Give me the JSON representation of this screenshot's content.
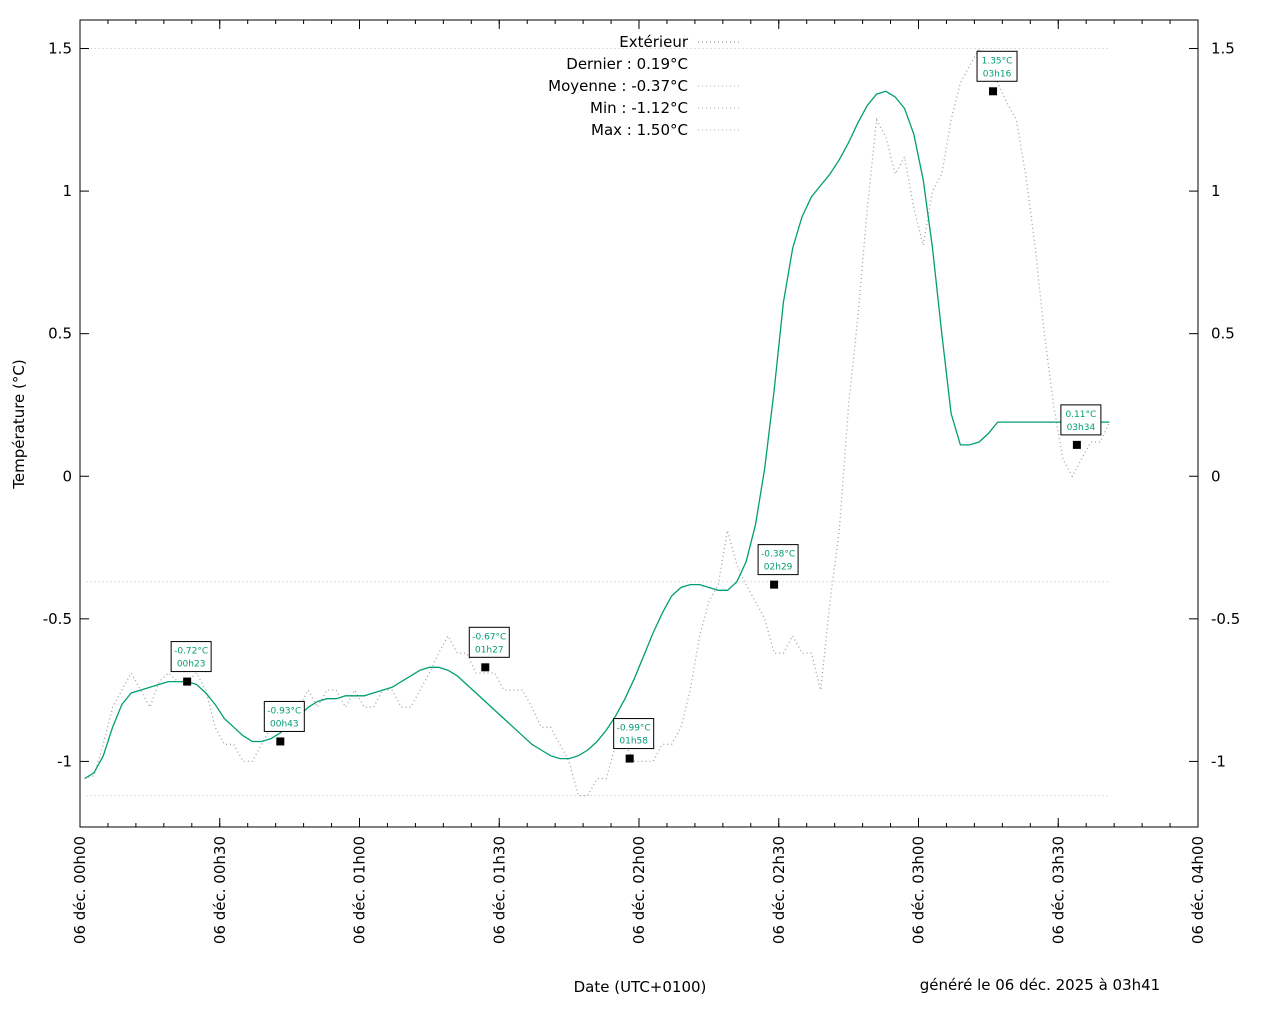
{
  "chart_data": {
    "type": "line",
    "title": "",
    "xlabel": "Date (UTC+0100)",
    "ylabel": "Température (°C)",
    "footer": "généré le 06 déc. 2025 à 03h41",
    "xlim": [
      "00:00",
      "04:00"
    ],
    "ylim": [
      -1.23,
      1.6
    ],
    "y_ticks": [
      {
        "value": 1.5,
        "label": "1.5"
      },
      {
        "value": 1.0,
        "label": "1"
      },
      {
        "value": 0.5,
        "label": "0.5"
      },
      {
        "value": 0.0,
        "label": "0"
      },
      {
        "value": -0.5,
        "label": "-0.5"
      },
      {
        "value": -1.0,
        "label": "-1"
      }
    ],
    "x_ticks": [
      {
        "value": "00:00",
        "label": "06 déc. 00h00"
      },
      {
        "value": "00:30",
        "label": "06 déc. 00h30"
      },
      {
        "value": "01:00",
        "label": "06 déc. 01h00"
      },
      {
        "value": "01:30",
        "label": "06 déc. 01h30"
      },
      {
        "value": "02:00",
        "label": "06 déc. 02h00"
      },
      {
        "value": "02:30",
        "label": "06 déc. 02h30"
      },
      {
        "value": "03:00",
        "label": "06 déc. 03h00"
      },
      {
        "value": "03:30",
        "label": "06 déc. 03h30"
      },
      {
        "value": "04:00",
        "label": "06 déc. 04h00"
      }
    ],
    "x_minor_tick_minutes": 6,
    "grid": false,
    "legend_position": "top-center",
    "legend": [
      {
        "label": "Extérieur",
        "key": "raw"
      },
      {
        "label": "Dernier : 0.19°C",
        "key": "none"
      },
      {
        "label": "Moyenne : -0.37°C",
        "key": "mean"
      },
      {
        "label": "Min : -1.12°C",
        "key": "min"
      },
      {
        "label": "Max : 1.50°C",
        "key": "max"
      }
    ],
    "reference_lines": {
      "mean": -0.37,
      "min": -1.12,
      "max": 1.5
    },
    "colors": {
      "smooth": "#009e73",
      "raw": "#a0a0a0",
      "reference": "#c0c0c0",
      "marker": "#000000"
    },
    "series": [
      {
        "key": "raw",
        "style": "dotted",
        "x": [
          "00:01",
          "00:03",
          "00:05",
          "00:07",
          "00:09",
          "00:11",
          "00:13",
          "00:15",
          "00:17",
          "00:19",
          "00:21",
          "00:23",
          "00:25",
          "00:27",
          "00:29",
          "00:31",
          "00:33",
          "00:35",
          "00:37",
          "00:39",
          "00:41",
          "00:43",
          "00:45",
          "00:47",
          "00:49",
          "00:51",
          "00:53",
          "00:55",
          "00:57",
          "00:59",
          "01:01",
          "01:03",
          "01:05",
          "01:07",
          "01:09",
          "01:11",
          "01:13",
          "01:15",
          "01:17",
          "01:19",
          "01:21",
          "01:23",
          "01:25",
          "01:27",
          "01:29",
          "01:31",
          "01:33",
          "01:35",
          "01:37",
          "01:39",
          "01:41",
          "01:43",
          "01:45",
          "01:47",
          "01:49",
          "01:51",
          "01:53",
          "01:55",
          "01:57",
          "01:59",
          "02:01",
          "02:03",
          "02:05",
          "02:07",
          "02:09",
          "02:11",
          "02:13",
          "02:15",
          "02:17",
          "02:19",
          "02:21",
          "02:23",
          "02:25",
          "02:27",
          "02:29",
          "02:31",
          "02:33",
          "02:35",
          "02:37",
          "02:39",
          "02:41",
          "02:43",
          "02:45",
          "02:47",
          "02:49",
          "02:51",
          "02:53",
          "02:55",
          "02:57",
          "02:59",
          "03:01",
          "03:03",
          "03:05",
          "03:07",
          "03:09",
          "03:11",
          "03:13",
          "03:15",
          "03:17",
          "03:19",
          "03:21",
          "03:23",
          "03:25",
          "03:27",
          "03:29",
          "03:31",
          "03:33",
          "03:35",
          "03:37",
          "03:39",
          "03:41"
        ],
        "y": [
          -1.06,
          -1.05,
          -0.94,
          -0.81,
          -0.75,
          -0.69,
          -0.75,
          -0.81,
          -0.72,
          -0.69,
          -0.72,
          -0.72,
          -0.69,
          -0.75,
          -0.88,
          -0.94,
          -0.94,
          -1.0,
          -1.0,
          -0.94,
          -0.88,
          -0.88,
          -0.88,
          -0.81,
          -0.75,
          -0.81,
          -0.75,
          -0.75,
          -0.81,
          -0.75,
          -0.81,
          -0.81,
          -0.75,
          -0.75,
          -0.81,
          -0.81,
          -0.75,
          -0.69,
          -0.62,
          -0.56,
          -0.62,
          -0.62,
          -0.69,
          -0.69,
          -0.69,
          -0.75,
          -0.75,
          -0.75,
          -0.81,
          -0.88,
          -0.88,
          -0.94,
          -1.0,
          -1.12,
          -1.12,
          -1.06,
          -1.06,
          -0.94,
          -0.94,
          -1.0,
          -1.0,
          -1.0,
          -0.94,
          -0.94,
          -0.88,
          -0.75,
          -0.56,
          -0.44,
          -0.38,
          -0.19,
          -0.31,
          -0.38,
          -0.44,
          -0.5,
          -0.62,
          -0.62,
          -0.56,
          -0.62,
          -0.62,
          -0.75,
          -0.44,
          -0.19,
          0.25,
          0.56,
          0.94,
          1.25,
          1.19,
          1.06,
          1.12,
          0.94,
          0.81,
          1.0,
          1.06,
          1.25,
          1.38,
          1.44,
          1.5,
          1.44,
          1.38,
          1.31,
          1.25,
          1.06,
          0.81,
          0.5,
          0.25,
          0.06,
          0.0,
          0.06,
          0.12,
          0.12,
          0.19
        ]
      },
      {
        "key": "smooth",
        "style": "solid",
        "x": [
          "00:01",
          "00:03",
          "00:05",
          "00:07",
          "00:09",
          "00:11",
          "00:13",
          "00:15",
          "00:17",
          "00:19",
          "00:21",
          "00:23",
          "00:25",
          "00:27",
          "00:29",
          "00:31",
          "00:33",
          "00:35",
          "00:37",
          "00:39",
          "00:41",
          "00:43",
          "00:45",
          "00:47",
          "00:49",
          "00:51",
          "00:53",
          "00:55",
          "00:57",
          "00:59",
          "01:01",
          "01:03",
          "01:05",
          "01:07",
          "01:09",
          "01:11",
          "01:13",
          "01:15",
          "01:17",
          "01:19",
          "01:21",
          "01:23",
          "01:25",
          "01:27",
          "01:29",
          "01:31",
          "01:33",
          "01:35",
          "01:37",
          "01:39",
          "01:41",
          "01:43",
          "01:45",
          "01:47",
          "01:49",
          "01:51",
          "01:53",
          "01:55",
          "01:57",
          "01:59",
          "02:01",
          "02:03",
          "02:05",
          "02:07",
          "02:09",
          "02:11",
          "02:13",
          "02:15",
          "02:17",
          "02:19",
          "02:21",
          "02:23",
          "02:25",
          "02:27",
          "02:29",
          "02:31",
          "02:33",
          "02:35",
          "02:37",
          "02:39",
          "02:41",
          "02:43",
          "02:45",
          "02:47",
          "02:49",
          "02:51",
          "02:53",
          "02:55",
          "02:57",
          "02:59",
          "03:01",
          "03:03",
          "03:05",
          "03:07",
          "03:09",
          "03:11",
          "03:13",
          "03:15",
          "03:17",
          "03:19",
          "03:21",
          "03:23",
          "03:25",
          "03:27",
          "03:29",
          "03:31",
          "03:33",
          "03:35",
          "03:37",
          "03:39",
          "03:41"
        ],
        "y": [
          -1.06,
          -1.04,
          -0.98,
          -0.88,
          -0.8,
          -0.76,
          -0.75,
          -0.74,
          -0.73,
          -0.72,
          -0.72,
          -0.72,
          -0.73,
          -0.76,
          -0.8,
          -0.85,
          -0.88,
          -0.91,
          -0.93,
          -0.93,
          -0.92,
          -0.9,
          -0.87,
          -0.84,
          -0.81,
          -0.79,
          -0.78,
          -0.78,
          -0.77,
          -0.77,
          -0.77,
          -0.76,
          -0.75,
          -0.74,
          -0.72,
          -0.7,
          -0.68,
          -0.67,
          -0.67,
          -0.68,
          -0.7,
          -0.73,
          -0.76,
          -0.79,
          -0.82,
          -0.85,
          -0.88,
          -0.91,
          -0.94,
          -0.96,
          -0.98,
          -0.99,
          -0.99,
          -0.98,
          -0.96,
          -0.93,
          -0.89,
          -0.84,
          -0.78,
          -0.71,
          -0.63,
          -0.55,
          -0.48,
          -0.42,
          -0.39,
          -0.38,
          -0.38,
          -0.39,
          -0.4,
          -0.4,
          -0.37,
          -0.3,
          -0.17,
          0.03,
          0.3,
          0.61,
          0.8,
          0.91,
          0.98,
          1.02,
          1.06,
          1.11,
          1.17,
          1.24,
          1.3,
          1.34,
          1.35,
          1.33,
          1.29,
          1.2,
          1.04,
          0.8,
          0.5,
          0.22,
          0.11,
          0.11,
          0.12,
          0.15,
          0.19,
          0.19,
          0.19,
          0.19,
          0.19,
          0.19,
          0.19,
          0.19,
          0.19,
          0.19,
          0.19,
          0.19,
          0.19
        ]
      }
    ],
    "annotations": [
      {
        "x": "00:23",
        "y": -0.72,
        "value_label": "-0.72°C",
        "time_label": "00h23"
      },
      {
        "x": "00:43",
        "y": -0.93,
        "value_label": "-0.93°C",
        "time_label": "00h43"
      },
      {
        "x": "01:27",
        "y": -0.67,
        "value_label": "-0.67°C",
        "time_label": "01h27"
      },
      {
        "x": "01:58",
        "y": -0.99,
        "value_label": "-0.99°C",
        "time_label": "01h58"
      },
      {
        "x": "02:29",
        "y": -0.38,
        "value_label": "-0.38°C",
        "time_label": "02h29"
      },
      {
        "x": "03:16",
        "y": 1.35,
        "value_label": "1.35°C",
        "time_label": "03h16"
      },
      {
        "x": "03:34",
        "y": 0.11,
        "value_label": "0.11°C",
        "time_label": "03h34"
      }
    ]
  }
}
